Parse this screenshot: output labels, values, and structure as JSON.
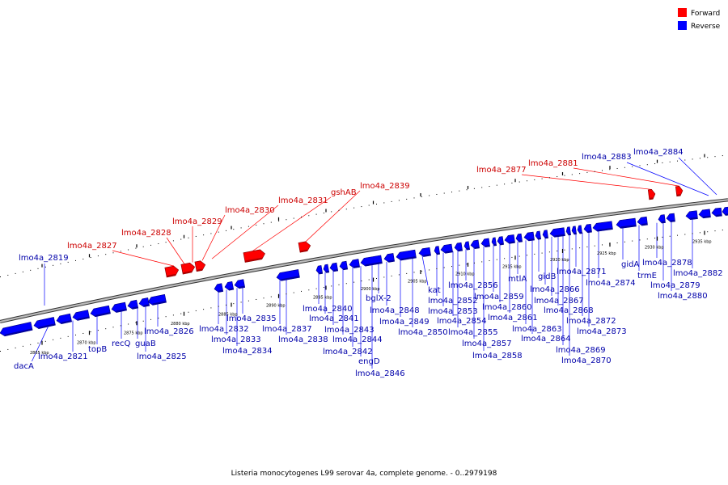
{
  "legend": {
    "forward": {
      "label": "Forward",
      "color": "#ff0000"
    },
    "reverse": {
      "label": "Reverse",
      "color": "#0000ff"
    }
  },
  "caption": "Listeria monocytogenes L99 serovar 4a, complete genome. - 0..2979198",
  "ticks": [
    {
      "label": "2865 kbp"
    },
    {
      "label": "2870 kbp"
    },
    {
      "label": "2875 kbp"
    },
    {
      "label": "2880 kbp"
    },
    {
      "label": "2885 kbp"
    },
    {
      "label": "2890 kbp"
    },
    {
      "label": "2895 kbp"
    },
    {
      "label": "2900 kbp"
    },
    {
      "label": "2905 kbp"
    },
    {
      "label": "2910 kbp"
    },
    {
      "label": "2915 kbp"
    },
    {
      "label": "2920 kbp"
    },
    {
      "label": "2925 kbp"
    },
    {
      "label": "2930 kbp"
    },
    {
      "label": "2935 kbp"
    }
  ],
  "forward_genes": [
    {
      "label": "lmo4a_2827"
    },
    {
      "label": "lmo4a_2828"
    },
    {
      "label": "lmo4a_2829"
    },
    {
      "label": "lmo4a_2830"
    },
    {
      "label": "lmo4a_2831"
    },
    {
      "label": "gshAB"
    },
    {
      "label": "lmo4a_2839"
    },
    {
      "label": "lmo4a_2877"
    },
    {
      "label": "lmo4a_2881"
    }
  ],
  "reverse_genes": [
    {
      "label": "lmo4a_2819"
    },
    {
      "label": "dacA"
    },
    {
      "label": "lmo4a_2821"
    },
    {
      "label": "topB"
    },
    {
      "label": "recQ"
    },
    {
      "label": "guaB"
    },
    {
      "label": "lmo4a_2825"
    },
    {
      "label": "lmo4a_2826"
    },
    {
      "label": "lmo4a_2832"
    },
    {
      "label": "lmo4a_2833"
    },
    {
      "label": "lmo4a_2834"
    },
    {
      "label": "lmo4a_2835"
    },
    {
      "label": "lmo4a_2837"
    },
    {
      "label": "lmo4a_2838"
    },
    {
      "label": "lmo4a_2840"
    },
    {
      "label": "lmo4a_2841"
    },
    {
      "label": "lmo4a_2843"
    },
    {
      "label": "lmo4a_2844"
    },
    {
      "label": "lmo4a_2842"
    },
    {
      "label": "engD"
    },
    {
      "label": "lmo4a_2846"
    },
    {
      "label": "bglX-2"
    },
    {
      "label": "lmo4a_2848"
    },
    {
      "label": "lmo4a_2849"
    },
    {
      "label": "lmo4a_2850"
    },
    {
      "label": "kat"
    },
    {
      "label": "lmo4a_2852"
    },
    {
      "label": "lmo4a_2853"
    },
    {
      "label": "lmo4a_2854"
    },
    {
      "label": "lmo4a_2855"
    },
    {
      "label": "lmo4a_2856"
    },
    {
      "label": "lmo4a_2857"
    },
    {
      "label": "lmo4a_2858"
    },
    {
      "label": "lmo4a_2859"
    },
    {
      "label": "lmo4a_2860"
    },
    {
      "label": "lmo4a_2861"
    },
    {
      "label": "mtlA"
    },
    {
      "label": "lmo4a_2863"
    },
    {
      "label": "lmo4a_2864"
    },
    {
      "label": "gidB"
    },
    {
      "label": "lmo4a_2866"
    },
    {
      "label": "lmo4a_2867"
    },
    {
      "label": "lmo4a_2868"
    },
    {
      "label": "lmo4a_2869"
    },
    {
      "label": "lmo4a_2870"
    },
    {
      "label": "lmo4a_2871"
    },
    {
      "label": "lmo4a_2872"
    },
    {
      "label": "lmo4a_2873"
    },
    {
      "label": "lmo4a_2874"
    },
    {
      "label": "gidA"
    },
    {
      "label": "trmE"
    },
    {
      "label": "lmo4a_2878"
    },
    {
      "label": "lmo4a_2879"
    },
    {
      "label": "lmo4a_2880"
    },
    {
      "label": "lmo4a_2882"
    },
    {
      "label": "lmo4a_2883"
    },
    {
      "label": "lmo4a_2884"
    }
  ]
}
